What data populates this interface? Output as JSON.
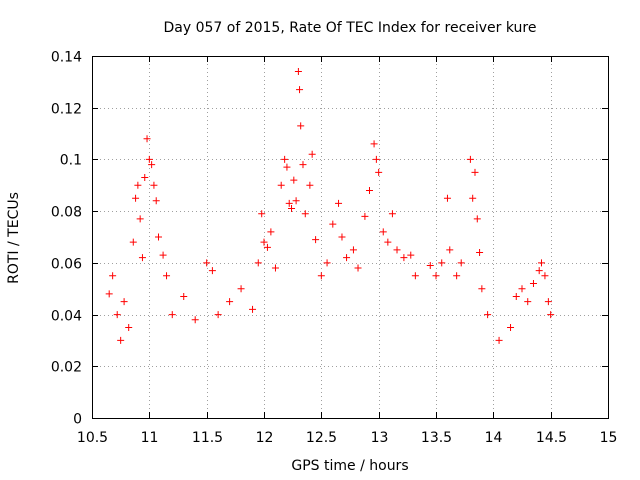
{
  "chart_data": {
    "type": "scatter",
    "title": "Day 057 of 2015, Rate Of TEC Index for receiver kure",
    "xlabel": "GPS time / hours",
    "ylabel": "ROTI / TECUs",
    "xlim": [
      10.5,
      15
    ],
    "ylim": [
      0,
      0.14
    ],
    "x_ticks": [
      "10.5",
      "11",
      "11.5",
      "12",
      "12.5",
      "13",
      "13.5",
      "14",
      "14.5",
      "15"
    ],
    "y_ticks": [
      "0",
      "0.02",
      "0.04",
      "0.06",
      "0.08",
      "0.1",
      "0.12",
      "0.14"
    ],
    "x_tick_values": [
      10.5,
      11,
      11.5,
      12,
      12.5,
      13,
      13.5,
      14,
      14.5,
      15
    ],
    "y_tick_values": [
      0,
      0.02,
      0.04,
      0.06,
      0.08,
      0.1,
      0.12,
      0.14
    ],
    "grid": true,
    "marker": "+",
    "color": "#ff0000",
    "series": [
      {
        "name": "ROTI",
        "points": [
          [
            10.65,
            0.048
          ],
          [
            10.68,
            0.055
          ],
          [
            10.72,
            0.04
          ],
          [
            10.75,
            0.03
          ],
          [
            10.78,
            0.045
          ],
          [
            10.82,
            0.035
          ],
          [
            10.86,
            0.068
          ],
          [
            10.88,
            0.085
          ],
          [
            10.9,
            0.09
          ],
          [
            10.92,
            0.077
          ],
          [
            10.94,
            0.062
          ],
          [
            10.96,
            0.093
          ],
          [
            10.98,
            0.108
          ],
          [
            11.0,
            0.1
          ],
          [
            11.02,
            0.098
          ],
          [
            11.04,
            0.09
          ],
          [
            11.06,
            0.084
          ],
          [
            11.08,
            0.07
          ],
          [
            11.12,
            0.063
          ],
          [
            11.15,
            0.055
          ],
          [
            11.2,
            0.04
          ],
          [
            11.3,
            0.047
          ],
          [
            11.4,
            0.038
          ],
          [
            11.5,
            0.06
          ],
          [
            11.55,
            0.057
          ],
          [
            11.6,
            0.04
          ],
          [
            11.7,
            0.045
          ],
          [
            11.8,
            0.05
          ],
          [
            11.9,
            0.042
          ],
          [
            11.95,
            0.06
          ],
          [
            11.98,
            0.079
          ],
          [
            12.0,
            0.068
          ],
          [
            12.03,
            0.066
          ],
          [
            12.06,
            0.072
          ],
          [
            12.1,
            0.058
          ],
          [
            12.15,
            0.09
          ],
          [
            12.18,
            0.1
          ],
          [
            12.2,
            0.097
          ],
          [
            12.22,
            0.083
          ],
          [
            12.24,
            0.081
          ],
          [
            12.26,
            0.092
          ],
          [
            12.28,
            0.084
          ],
          [
            12.3,
            0.134
          ],
          [
            12.31,
            0.127
          ],
          [
            12.32,
            0.113
          ],
          [
            12.34,
            0.098
          ],
          [
            12.36,
            0.079
          ],
          [
            12.4,
            0.09
          ],
          [
            12.42,
            0.102
          ],
          [
            12.45,
            0.069
          ],
          [
            12.5,
            0.055
          ],
          [
            12.55,
            0.06
          ],
          [
            12.6,
            0.075
          ],
          [
            12.65,
            0.083
          ],
          [
            12.68,
            0.07
          ],
          [
            12.72,
            0.062
          ],
          [
            12.78,
            0.065
          ],
          [
            12.82,
            0.058
          ],
          [
            12.88,
            0.078
          ],
          [
            12.92,
            0.088
          ],
          [
            12.96,
            0.106
          ],
          [
            12.98,
            0.1
          ],
          [
            13.0,
            0.095
          ],
          [
            13.04,
            0.072
          ],
          [
            13.08,
            0.068
          ],
          [
            13.12,
            0.079
          ],
          [
            13.16,
            0.065
          ],
          [
            13.22,
            0.062
          ],
          [
            13.28,
            0.063
          ],
          [
            13.32,
            0.055
          ],
          [
            13.45,
            0.059
          ],
          [
            13.5,
            0.055
          ],
          [
            13.55,
            0.06
          ],
          [
            13.6,
            0.085
          ],
          [
            13.62,
            0.065
          ],
          [
            13.68,
            0.055
          ],
          [
            13.72,
            0.06
          ],
          [
            13.8,
            0.1
          ],
          [
            13.82,
            0.085
          ],
          [
            13.84,
            0.095
          ],
          [
            13.86,
            0.077
          ],
          [
            13.88,
            0.064
          ],
          [
            13.9,
            0.05
          ],
          [
            13.95,
            0.04
          ],
          [
            14.05,
            0.03
          ],
          [
            14.15,
            0.035
          ],
          [
            14.2,
            0.047
          ],
          [
            14.25,
            0.05
          ],
          [
            14.3,
            0.045
          ],
          [
            14.35,
            0.052
          ],
          [
            14.4,
            0.057
          ],
          [
            14.42,
            0.06
          ],
          [
            14.45,
            0.055
          ],
          [
            14.48,
            0.045
          ],
          [
            14.5,
            0.04
          ]
        ]
      }
    ]
  }
}
